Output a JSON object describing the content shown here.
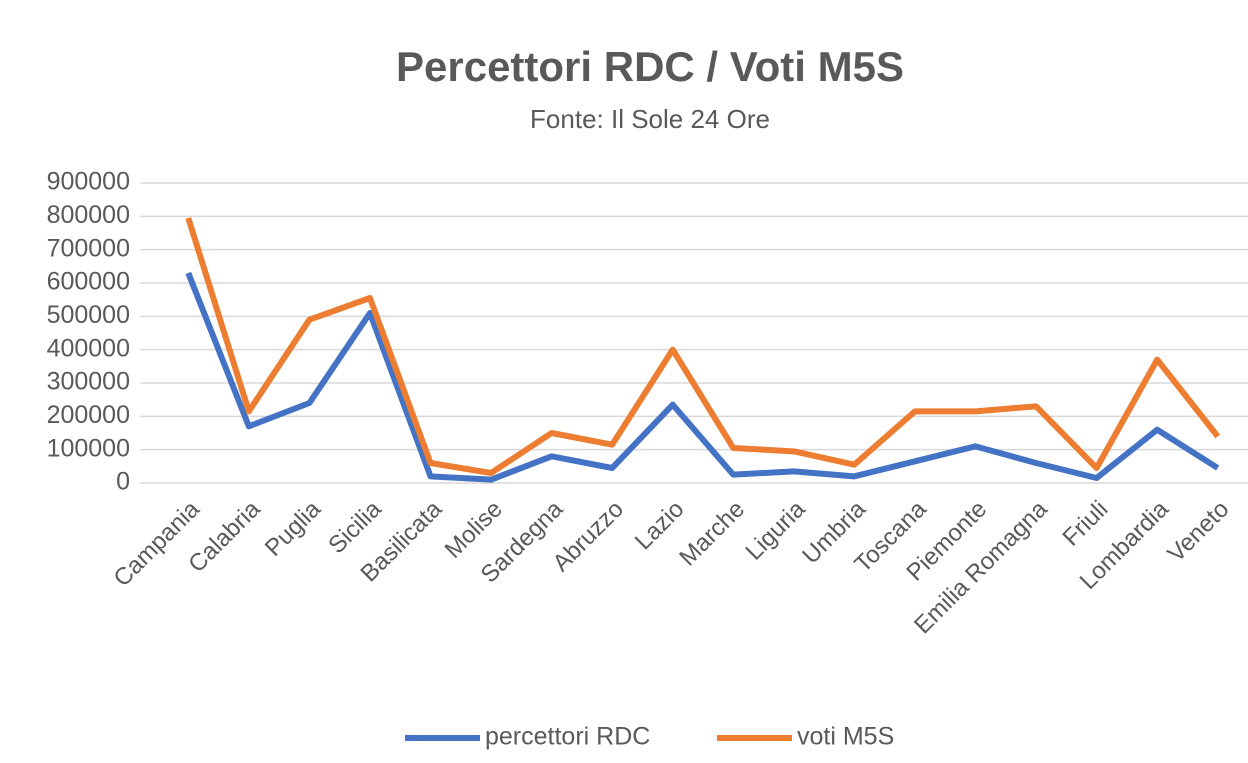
{
  "chart_data": {
    "type": "line",
    "title": "Percettori RDC / Voti M5S",
    "subtitle": "Fonte: Il Sole 24 Ore",
    "categories": [
      "Campania",
      "Calabria",
      "Puglia",
      "Sicilia",
      "Basilicata",
      "Molise",
      "Sardegna",
      "Abruzzo",
      "Lazio",
      "Marche",
      "Liguria",
      "Umbria",
      "Toscana",
      "Piemonte",
      "Emilia Romagna",
      "Friuli",
      "Lombardia",
      "Veneto"
    ],
    "series": [
      {
        "name": "percettori RDC",
        "color": "#4472c4",
        "values": [
          630000,
          170000,
          240000,
          510000,
          20000,
          10000,
          80000,
          45000,
          235000,
          25000,
          35000,
          20000,
          65000,
          110000,
          60000,
          15000,
          160000,
          45000
        ]
      },
      {
        "name": "voti M5S",
        "color": "#ed7d31",
        "values": [
          795000,
          215000,
          490000,
          555000,
          60000,
          30000,
          150000,
          115000,
          400000,
          105000,
          95000,
          55000,
          215000,
          215000,
          230000,
          45000,
          370000,
          140000
        ]
      }
    ],
    "ylim": [
      0,
      900000
    ],
    "yticks": [
      0,
      100000,
      200000,
      300000,
      400000,
      500000,
      600000,
      700000,
      800000,
      900000
    ],
    "grid": true,
    "legend": "bottom"
  }
}
